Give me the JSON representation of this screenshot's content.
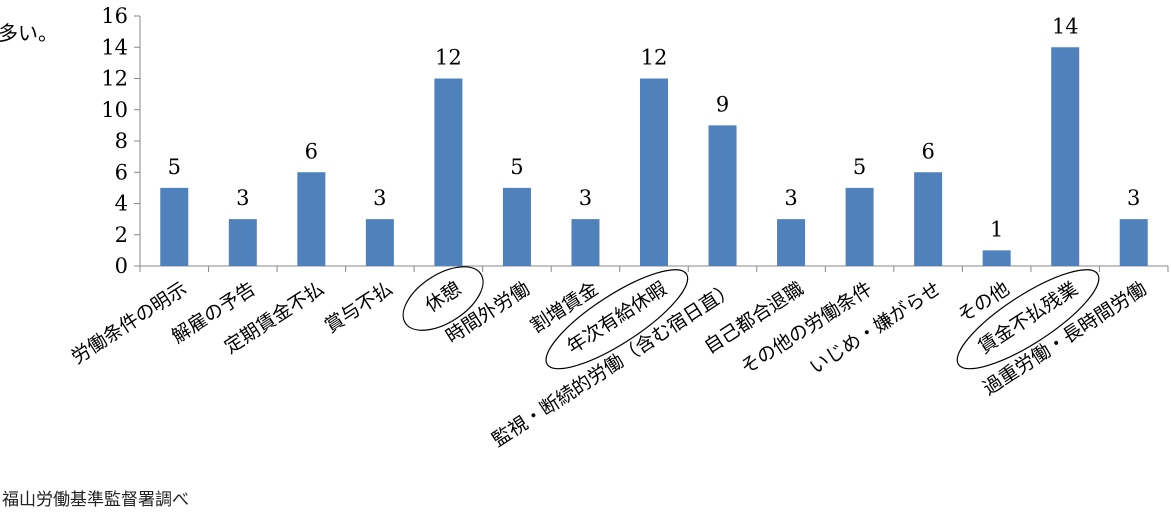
{
  "header_fragment": "多い。",
  "source_note": "福山労働基準監督署調べ",
  "chart_data": {
    "type": "bar",
    "title": "",
    "xlabel": "",
    "ylabel": "",
    "ylim": [
      0,
      16
    ],
    "yticks": [
      0,
      2,
      4,
      6,
      8,
      10,
      12,
      14,
      16
    ],
    "grid": false,
    "bar_color": "#4F81BD",
    "categories": [
      "労働条件の明示",
      "解雇の予告",
      "定期賃金不払",
      "賞与不払",
      "休憩",
      "時間外労働",
      "割増賃金",
      "年次有給休暇",
      "監視・断続的労働（含む宿日直）",
      "自己都合退職",
      "その他の労働条件",
      "いじめ・嫌がらせ",
      "その他",
      "賃金不払残業",
      "過重労働・長時間労働"
    ],
    "values": [
      5,
      3,
      6,
      3,
      12,
      5,
      3,
      12,
      9,
      3,
      5,
      6,
      1,
      14,
      3
    ],
    "data_labels": [
      "5",
      "3",
      "6",
      "3",
      "12",
      "5",
      "3",
      "12",
      "9",
      "3",
      "5",
      "6",
      "1",
      "14",
      "3"
    ],
    "highlighted_categories": [
      "休憩",
      "年次有給休暇",
      "賃金不払残業"
    ]
  }
}
